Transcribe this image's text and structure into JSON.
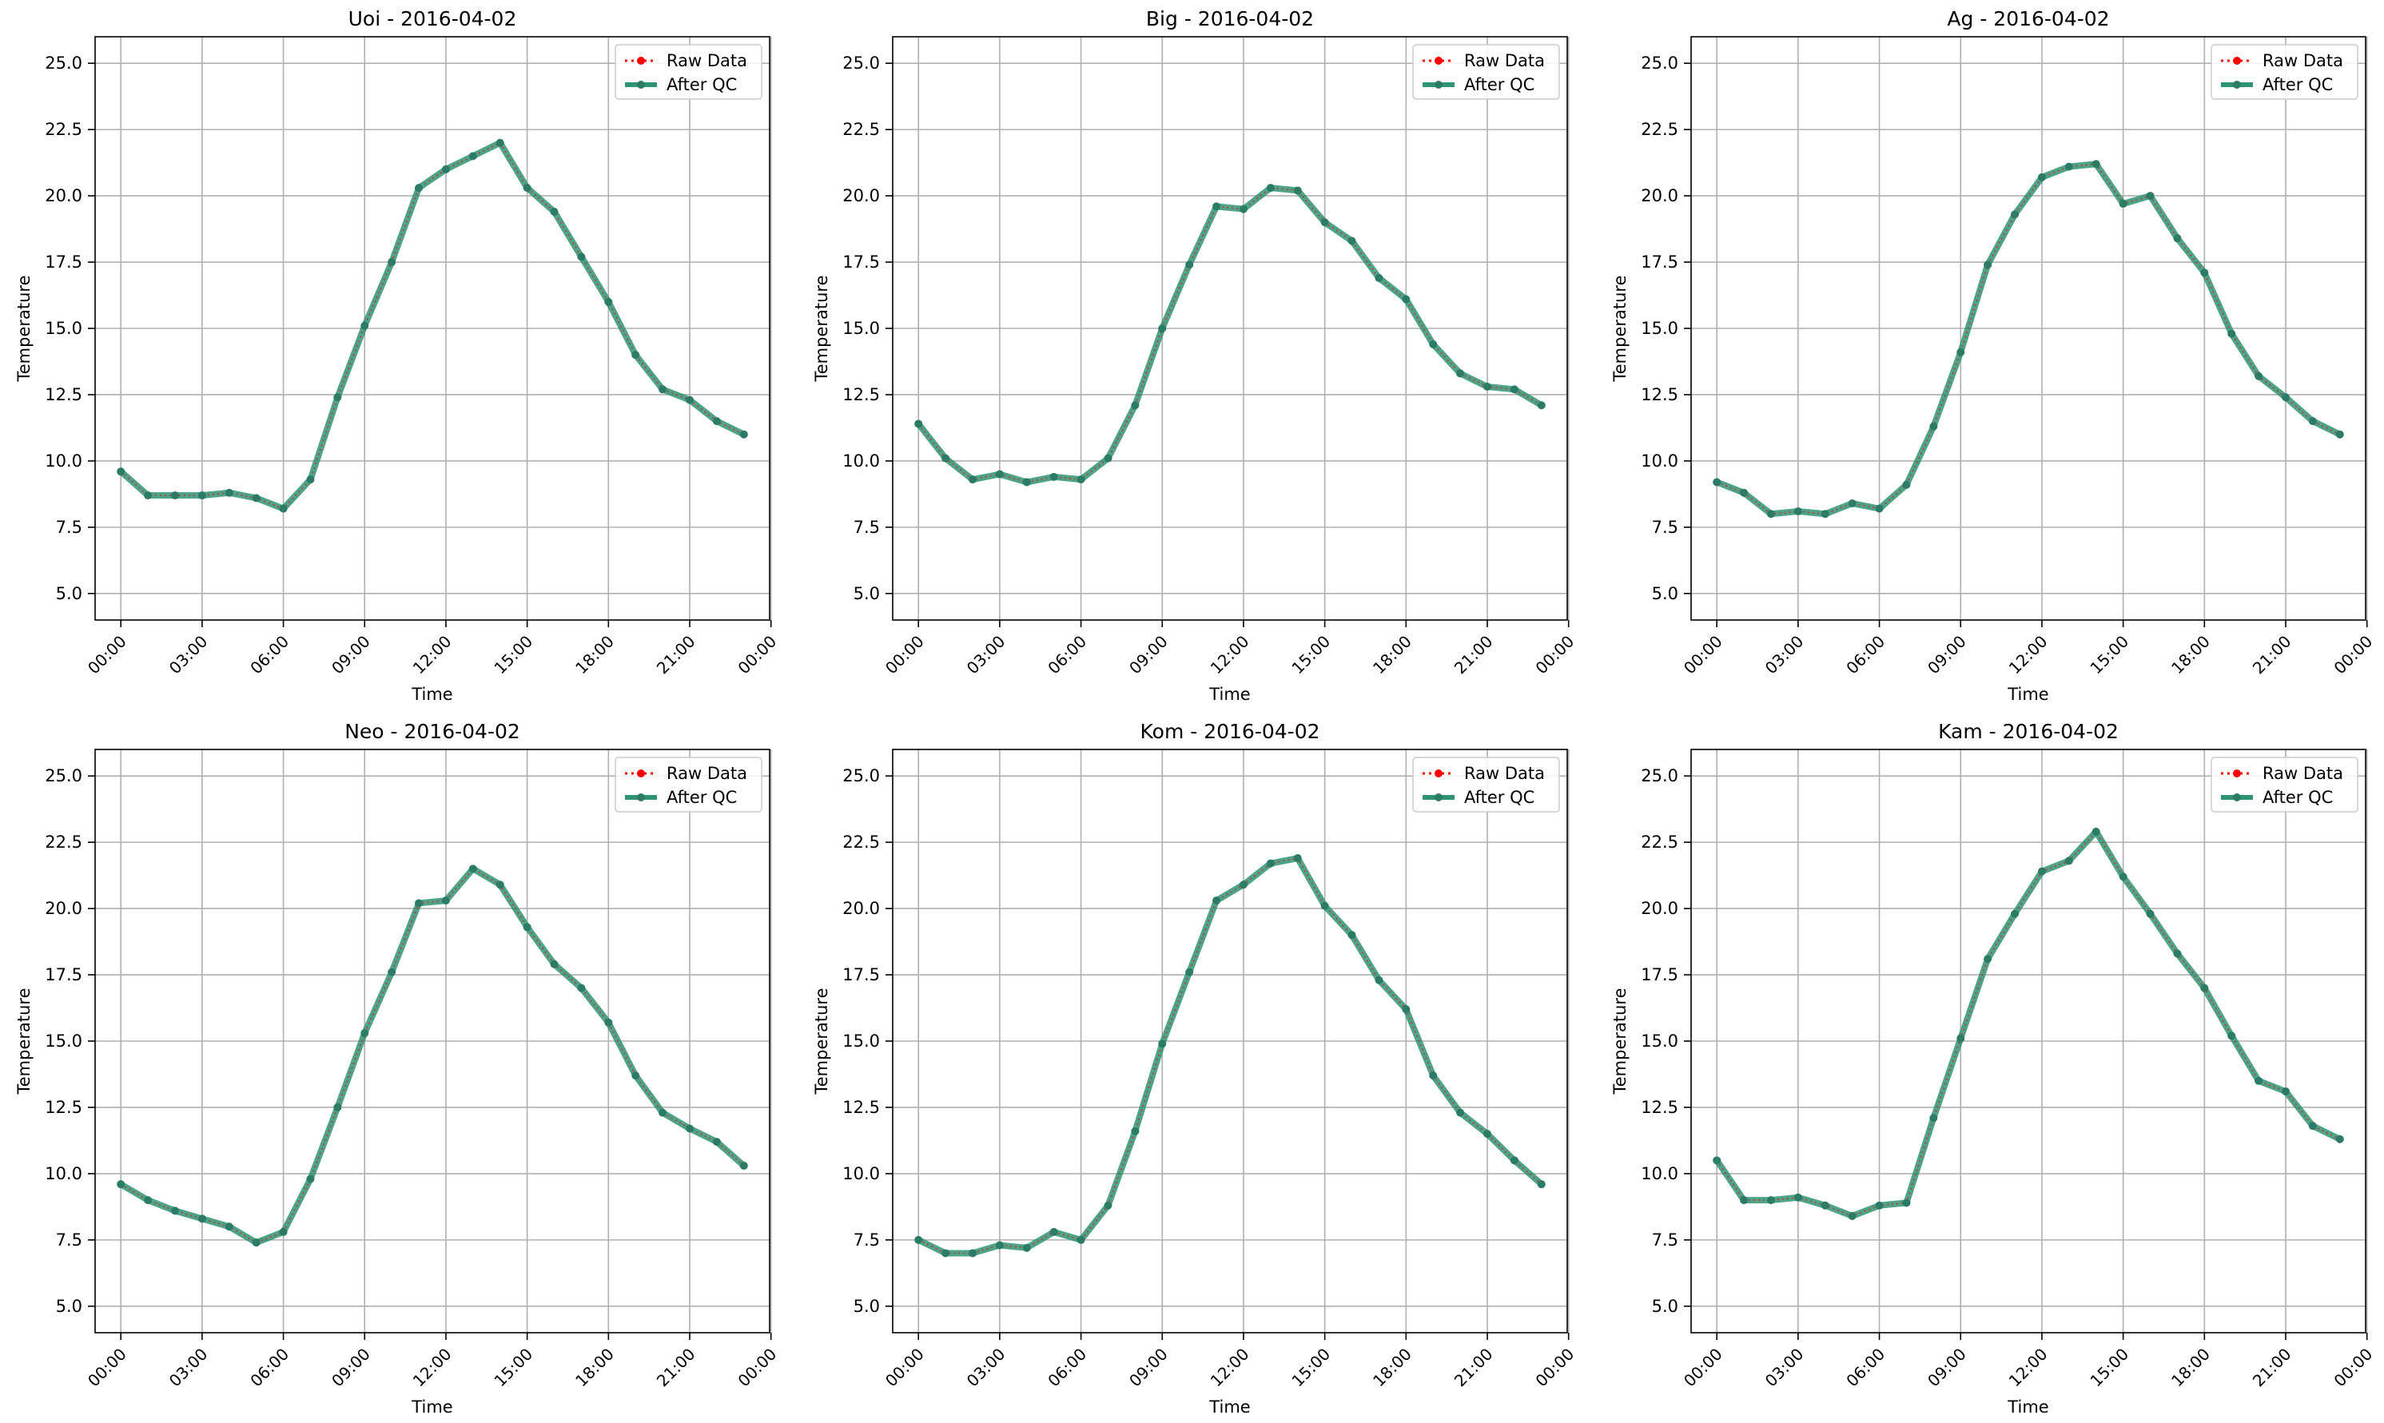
{
  "colors": {
    "raw": "#ff0000",
    "qc": "#2e9474",
    "qc_marker": "#2c7b66",
    "grid": "#b0b0b0",
    "axis": "#000000"
  },
  "legend": {
    "raw_label": "Raw Data",
    "qc_label": "After QC",
    "placement": "upper-right"
  },
  "chart_data": [
    {
      "type": "line",
      "title": "Uoi - 2016-04-02",
      "xlabel": "Time",
      "ylabel": "Temperature",
      "xlim": [
        -0.95,
        23.95
      ],
      "ylim": [
        4.0,
        26.0
      ],
      "grid": true,
      "x_tick_values": [
        0,
        3,
        6,
        9,
        12,
        15,
        18,
        21,
        24
      ],
      "x_tick_labels": [
        "00:00",
        "03:00",
        "06:00",
        "09:00",
        "12:00",
        "15:00",
        "18:00",
        "21:00",
        "00:00"
      ],
      "y_tick_values": [
        5.0,
        7.5,
        10.0,
        12.5,
        15.0,
        17.5,
        20.0,
        22.5,
        25.0
      ],
      "y_tick_labels": [
        "5.0",
        "7.5",
        "10.0",
        "12.5",
        "15.0",
        "17.5",
        "20.0",
        "22.5",
        "25.0"
      ],
      "x": [
        0,
        1,
        2,
        3,
        4,
        5,
        6,
        7,
        8,
        9,
        10,
        11,
        12,
        13,
        14,
        15,
        16,
        17,
        18,
        19,
        20,
        21,
        22,
        23
      ],
      "series": [
        {
          "name": "Raw Data",
          "values": [
            9.6,
            8.7,
            8.7,
            8.7,
            8.8,
            8.6,
            8.2,
            9.3,
            12.4,
            15.1,
            17.5,
            20.3,
            21.0,
            21.5,
            22.0,
            20.3,
            19.4,
            17.7,
            16.0,
            14.0,
            12.7,
            12.3,
            11.5,
            11.0
          ]
        },
        {
          "name": "After QC",
          "values": [
            9.6,
            8.7,
            8.7,
            8.7,
            8.8,
            8.6,
            8.2,
            9.3,
            12.4,
            15.1,
            17.5,
            20.3,
            21.0,
            21.5,
            22.0,
            20.3,
            19.4,
            17.7,
            16.0,
            14.0,
            12.7,
            12.3,
            11.5,
            11.0
          ]
        }
      ]
    },
    {
      "type": "line",
      "title": "Big - 2016-04-02",
      "xlabel": "Time",
      "ylabel": "Temperature",
      "xlim": [
        -0.95,
        23.95
      ],
      "ylim": [
        4.0,
        26.0
      ],
      "grid": true,
      "x_tick_values": [
        0,
        3,
        6,
        9,
        12,
        15,
        18,
        21,
        24
      ],
      "x_tick_labels": [
        "00:00",
        "03:00",
        "06:00",
        "09:00",
        "12:00",
        "15:00",
        "18:00",
        "21:00",
        "00:00"
      ],
      "y_tick_values": [
        5.0,
        7.5,
        10.0,
        12.5,
        15.0,
        17.5,
        20.0,
        22.5,
        25.0
      ],
      "y_tick_labels": [
        "5.0",
        "7.5",
        "10.0",
        "12.5",
        "15.0",
        "17.5",
        "20.0",
        "22.5",
        "25.0"
      ],
      "x": [
        0,
        1,
        2,
        3,
        4,
        5,
        6,
        7,
        8,
        9,
        10,
        11,
        12,
        13,
        14,
        15,
        16,
        17,
        18,
        19,
        20,
        21,
        22,
        23
      ],
      "series": [
        {
          "name": "Raw Data",
          "values": [
            11.4,
            10.1,
            9.3,
            9.5,
            9.2,
            9.4,
            9.3,
            10.1,
            12.1,
            15.0,
            17.4,
            19.6,
            19.5,
            20.3,
            20.2,
            19.0,
            18.3,
            16.9,
            16.1,
            14.4,
            13.3,
            12.8,
            12.7,
            12.1
          ]
        },
        {
          "name": "After QC",
          "values": [
            11.4,
            10.1,
            9.3,
            9.5,
            9.2,
            9.4,
            9.3,
            10.1,
            12.1,
            15.0,
            17.4,
            19.6,
            19.5,
            20.3,
            20.2,
            19.0,
            18.3,
            16.9,
            16.1,
            14.4,
            13.3,
            12.8,
            12.7,
            12.1
          ]
        }
      ]
    },
    {
      "type": "line",
      "title": "Ag - 2016-04-02",
      "xlabel": "Time",
      "ylabel": "Temperature",
      "xlim": [
        -0.95,
        23.95
      ],
      "ylim": [
        4.0,
        26.0
      ],
      "grid": true,
      "x_tick_values": [
        0,
        3,
        6,
        9,
        12,
        15,
        18,
        21,
        24
      ],
      "x_tick_labels": [
        "00:00",
        "03:00",
        "06:00",
        "09:00",
        "12:00",
        "15:00",
        "18:00",
        "21:00",
        "00:00"
      ],
      "y_tick_values": [
        5.0,
        7.5,
        10.0,
        12.5,
        15.0,
        17.5,
        20.0,
        22.5,
        25.0
      ],
      "y_tick_labels": [
        "5.0",
        "7.5",
        "10.0",
        "12.5",
        "15.0",
        "17.5",
        "20.0",
        "22.5",
        "25.0"
      ],
      "x": [
        0,
        1,
        2,
        3,
        4,
        5,
        6,
        7,
        8,
        9,
        10,
        11,
        12,
        13,
        14,
        15,
        16,
        17,
        18,
        19,
        20,
        21,
        22,
        23
      ],
      "series": [
        {
          "name": "Raw Data",
          "values": [
            9.2,
            8.8,
            8.0,
            8.1,
            8.0,
            8.4,
            8.2,
            9.1,
            11.3,
            14.1,
            17.4,
            19.3,
            20.7,
            21.1,
            21.2,
            19.7,
            20.0,
            18.4,
            17.1,
            14.8,
            13.2,
            12.4,
            11.5,
            11.0
          ]
        },
        {
          "name": "After QC",
          "values": [
            9.2,
            8.8,
            8.0,
            8.1,
            8.0,
            8.4,
            8.2,
            9.1,
            11.3,
            14.1,
            17.4,
            19.3,
            20.7,
            21.1,
            21.2,
            19.7,
            20.0,
            18.4,
            17.1,
            14.8,
            13.2,
            12.4,
            11.5,
            11.0
          ]
        }
      ]
    },
    {
      "type": "line",
      "title": "Neo - 2016-04-02",
      "xlabel": "Time",
      "ylabel": "Temperature",
      "xlim": [
        -0.95,
        23.95
      ],
      "ylim": [
        4.0,
        26.0
      ],
      "grid": true,
      "x_tick_values": [
        0,
        3,
        6,
        9,
        12,
        15,
        18,
        21,
        24
      ],
      "x_tick_labels": [
        "00:00",
        "03:00",
        "06:00",
        "09:00",
        "12:00",
        "15:00",
        "18:00",
        "21:00",
        "00:00"
      ],
      "y_tick_values": [
        5.0,
        7.5,
        10.0,
        12.5,
        15.0,
        17.5,
        20.0,
        22.5,
        25.0
      ],
      "y_tick_labels": [
        "5.0",
        "7.5",
        "10.0",
        "12.5",
        "15.0",
        "17.5",
        "20.0",
        "22.5",
        "25.0"
      ],
      "x": [
        0,
        1,
        2,
        3,
        4,
        5,
        6,
        7,
        8,
        9,
        10,
        11,
        12,
        13,
        14,
        15,
        16,
        17,
        18,
        19,
        20,
        21,
        22,
        23
      ],
      "series": [
        {
          "name": "Raw Data",
          "values": [
            9.6,
            9.0,
            8.6,
            8.3,
            8.0,
            7.4,
            7.8,
            9.8,
            12.5,
            15.3,
            17.6,
            20.2,
            20.3,
            21.5,
            20.9,
            19.3,
            17.9,
            17.0,
            15.7,
            13.7,
            12.3,
            11.7,
            11.2,
            10.3
          ]
        },
        {
          "name": "After QC",
          "values": [
            9.6,
            9.0,
            8.6,
            8.3,
            8.0,
            7.4,
            7.8,
            9.8,
            12.5,
            15.3,
            17.6,
            20.2,
            20.3,
            21.5,
            20.9,
            19.3,
            17.9,
            17.0,
            15.7,
            13.7,
            12.3,
            11.7,
            11.2,
            10.3
          ]
        }
      ]
    },
    {
      "type": "line",
      "title": "Kom - 2016-04-02",
      "xlabel": "Time",
      "ylabel": "Temperature",
      "xlim": [
        -0.95,
        23.95
      ],
      "ylim": [
        4.0,
        26.0
      ],
      "grid": true,
      "x_tick_values": [
        0,
        3,
        6,
        9,
        12,
        15,
        18,
        21,
        24
      ],
      "x_tick_labels": [
        "00:00",
        "03:00",
        "06:00",
        "09:00",
        "12:00",
        "15:00",
        "18:00",
        "21:00",
        "00:00"
      ],
      "y_tick_values": [
        5.0,
        7.5,
        10.0,
        12.5,
        15.0,
        17.5,
        20.0,
        22.5,
        25.0
      ],
      "y_tick_labels": [
        "5.0",
        "7.5",
        "10.0",
        "12.5",
        "15.0",
        "17.5",
        "20.0",
        "22.5",
        "25.0"
      ],
      "x": [
        0,
        1,
        2,
        3,
        4,
        5,
        6,
        7,
        8,
        9,
        10,
        11,
        12,
        13,
        14,
        15,
        16,
        17,
        18,
        19,
        20,
        21,
        22,
        23
      ],
      "series": [
        {
          "name": "Raw Data",
          "values": [
            7.5,
            7.0,
            7.0,
            7.3,
            7.2,
            7.8,
            7.5,
            8.8,
            11.6,
            14.9,
            17.6,
            20.3,
            20.9,
            21.7,
            21.9,
            20.1,
            19.0,
            17.3,
            16.2,
            13.7,
            12.3,
            11.5,
            10.5,
            9.6
          ]
        },
        {
          "name": "After QC",
          "values": [
            7.5,
            7.0,
            7.0,
            7.3,
            7.2,
            7.8,
            7.5,
            8.8,
            11.6,
            14.9,
            17.6,
            20.3,
            20.9,
            21.7,
            21.9,
            20.1,
            19.0,
            17.3,
            16.2,
            13.7,
            12.3,
            11.5,
            10.5,
            9.6
          ]
        }
      ]
    },
    {
      "type": "line",
      "title": "Kam - 2016-04-02",
      "xlabel": "Time",
      "ylabel": "Temperature",
      "xlim": [
        -0.95,
        23.95
      ],
      "ylim": [
        4.0,
        26.0
      ],
      "grid": true,
      "x_tick_values": [
        0,
        3,
        6,
        9,
        12,
        15,
        18,
        21,
        24
      ],
      "x_tick_labels": [
        "00:00",
        "03:00",
        "06:00",
        "09:00",
        "12:00",
        "15:00",
        "18:00",
        "21:00",
        "00:00"
      ],
      "y_tick_values": [
        5.0,
        7.5,
        10.0,
        12.5,
        15.0,
        17.5,
        20.0,
        22.5,
        25.0
      ],
      "y_tick_labels": [
        "5.0",
        "7.5",
        "10.0",
        "12.5",
        "15.0",
        "17.5",
        "20.0",
        "22.5",
        "25.0"
      ],
      "x": [
        0,
        1,
        2,
        3,
        4,
        5,
        6,
        7,
        8,
        9,
        10,
        11,
        12,
        13,
        14,
        15,
        16,
        17,
        18,
        19,
        20,
        21,
        22,
        23
      ],
      "series": [
        {
          "name": "Raw Data",
          "values": [
            10.5,
            9.0,
            9.0,
            9.1,
            8.8,
            8.4,
            8.8,
            8.9,
            12.1,
            15.1,
            18.1,
            19.8,
            21.4,
            21.8,
            22.9,
            21.2,
            19.8,
            18.3,
            17.0,
            15.2,
            13.5,
            13.1,
            11.8,
            11.3
          ]
        },
        {
          "name": "After QC",
          "values": [
            10.5,
            9.0,
            9.0,
            9.1,
            8.8,
            8.4,
            8.8,
            8.9,
            12.1,
            15.1,
            18.1,
            19.8,
            21.4,
            21.8,
            22.9,
            21.2,
            19.8,
            18.3,
            17.0,
            15.2,
            13.5,
            13.1,
            11.8,
            11.3
          ]
        }
      ]
    }
  ]
}
